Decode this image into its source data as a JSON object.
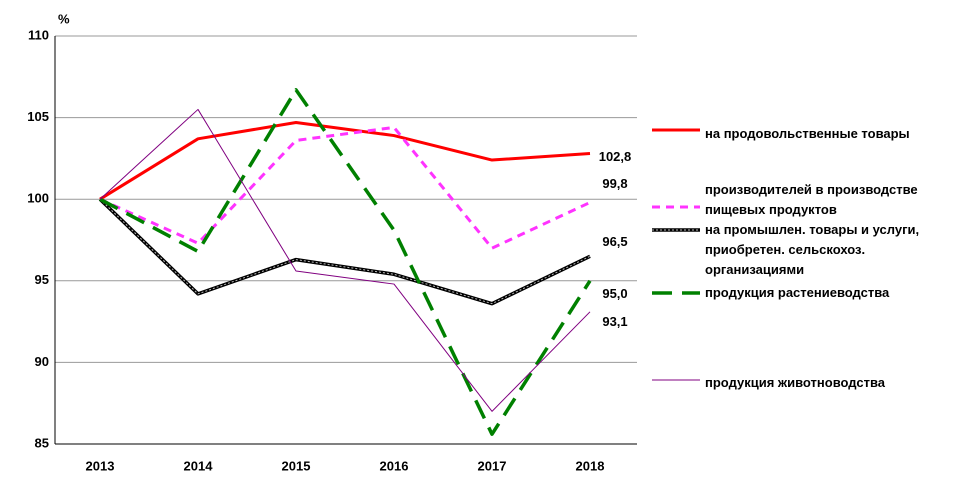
{
  "chart_data": {
    "type": "line",
    "y_label": "%",
    "categories": [
      "2013",
      "2014",
      "2015",
      "2016",
      "2017",
      "2018"
    ],
    "ylim": [
      85,
      110
    ],
    "yticks": [
      85,
      90,
      95,
      100,
      105,
      110
    ],
    "grid": true,
    "legend": "right",
    "series": [
      {
        "name": "на продовольственные товары",
        "color": "#ff0000",
        "style": "solid",
        "values": [
          100,
          103.7,
          104.7,
          103.9,
          102.4,
          102.8
        ],
        "value_labels": [
          null,
          null,
          null,
          null,
          null,
          "102,8"
        ]
      },
      {
        "name": "производителей в производстве пищевых продуктов",
        "color": "#ff33ff",
        "style": "dashed",
        "values": [
          100,
          97.3,
          103.6,
          104.4,
          97.0,
          99.8
        ],
        "value_labels": [
          null,
          null,
          null,
          null,
          null,
          "99,8"
        ]
      },
      {
        "name": "на промышлен. товары и услуги, приобретен. сельскохоз. организациями",
        "color": "#000000",
        "style": "double",
        "values": [
          100,
          94.2,
          96.3,
          95.4,
          93.6,
          96.5
        ],
        "value_labels": [
          null,
          null,
          null,
          null,
          null,
          "96,5"
        ]
      },
      {
        "name": "продукция растениеводства",
        "color": "#008000",
        "style": "long-dash",
        "values": [
          100,
          96.8,
          106.7,
          98.1,
          85.6,
          95.0
        ],
        "value_labels": [
          null,
          null,
          null,
          null,
          null,
          "95,0"
        ]
      },
      {
        "name": "продукция животноводства",
        "color": "#800080",
        "style": "thin",
        "values": [
          100,
          105.5,
          95.6,
          94.8,
          87.0,
          93.1
        ],
        "value_labels": [
          null,
          null,
          null,
          null,
          null,
          "93,1"
        ]
      }
    ]
  }
}
